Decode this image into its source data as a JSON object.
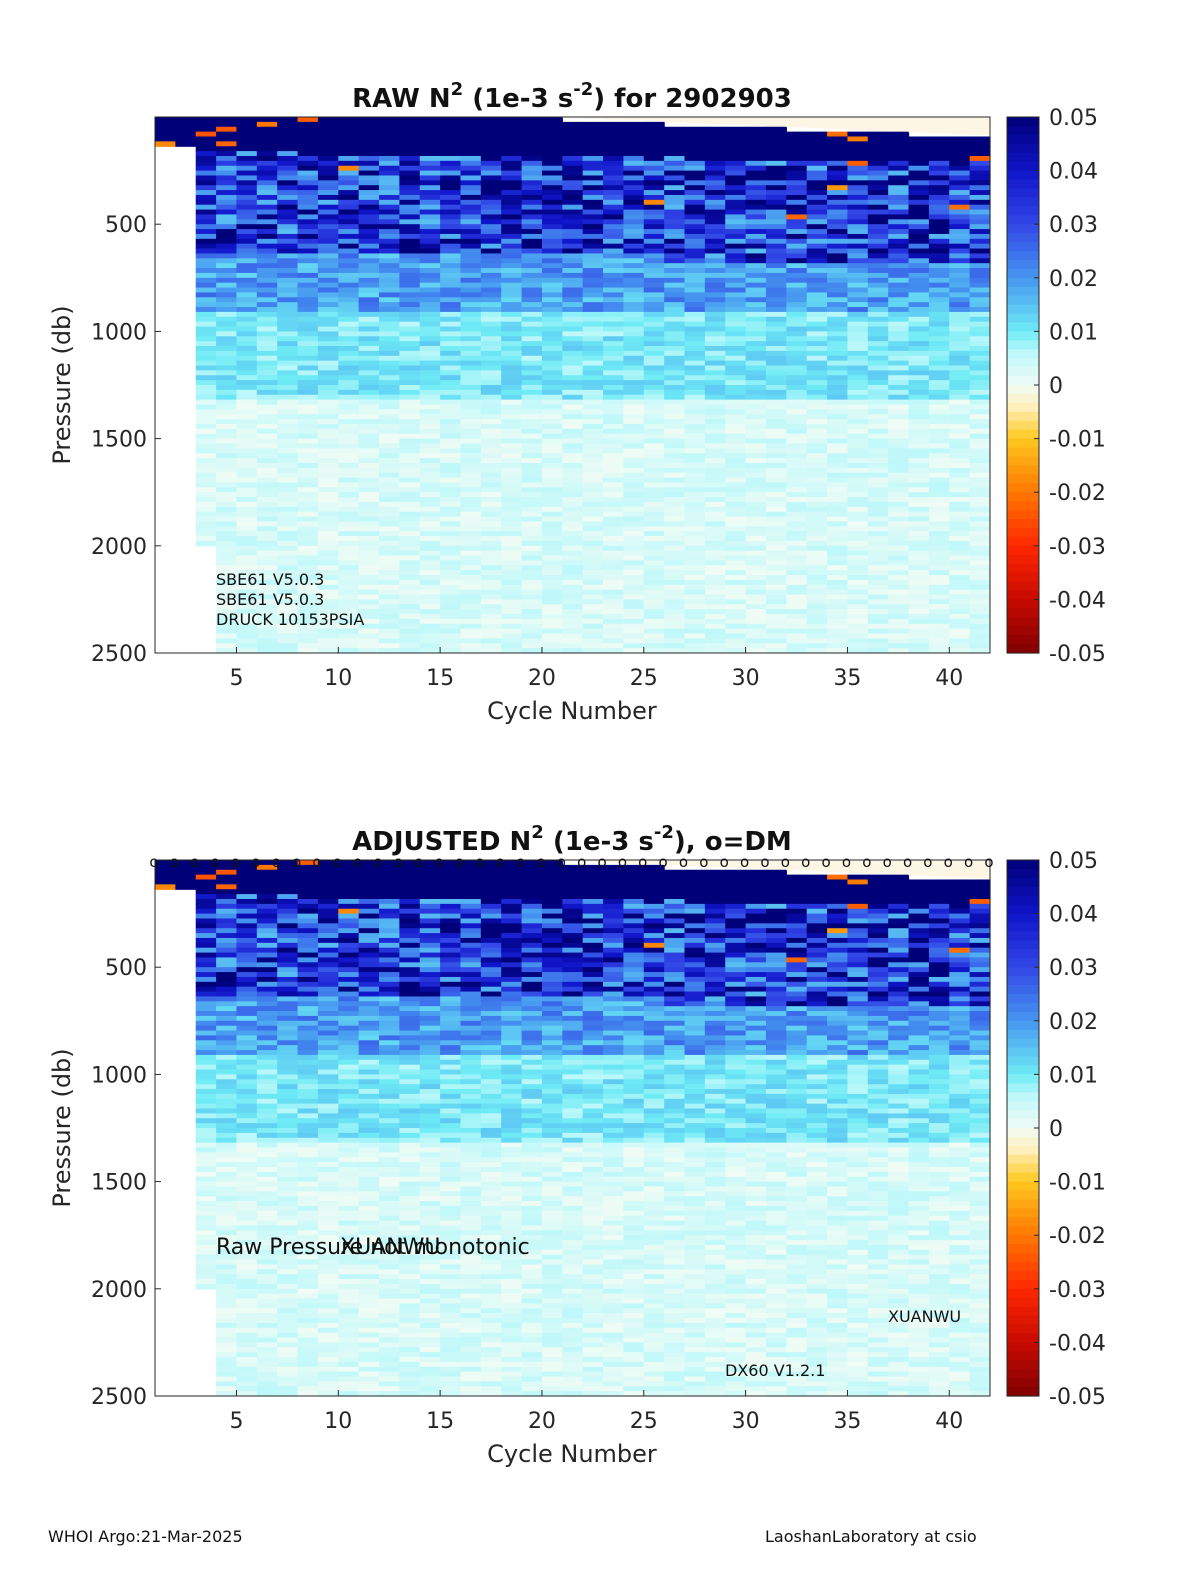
{
  "chart_data": [
    {
      "type": "heatmap",
      "title_main": "RAW N",
      "title_sup": "2",
      "title_unit_pre": " (1e-3 s",
      "title_unit_sup": "-2",
      "title_post": ") for 2902903",
      "xlabel": "Cycle Number",
      "ylabel": "Pressure (db)",
      "xlim": [
        1,
        42
      ],
      "ylim": [
        0,
        2500
      ],
      "y_reversed": true,
      "xticks": [
        "5",
        "10",
        "15",
        "20",
        "25",
        "30",
        "35",
        "40"
      ],
      "xtick_values": [
        5,
        10,
        15,
        20,
        25,
        30,
        35,
        40
      ],
      "yticks": [
        "500",
        "1000",
        "1500",
        "2000",
        "2500"
      ],
      "ytick_values": [
        500,
        1000,
        1500,
        2000,
        2500
      ],
      "colorbar": {
        "ticks": [
          "0.05",
          "0.04",
          "0.03",
          "0.02",
          "0.01",
          "0",
          "-0.01",
          "-0.02",
          "-0.03",
          "-0.04",
          "-0.05"
        ],
        "range": [
          -0.05,
          0.05
        ]
      },
      "annotations": [
        "SBE61 V5.0.3",
        "SBE61 V5.0.3",
        "DRUCK 10153PSIA"
      ],
      "dm_markers": false
    },
    {
      "type": "heatmap",
      "title_main": "ADJUSTED N",
      "title_sup": "2",
      "title_unit_pre": " (1e-3 s",
      "title_unit_sup": "-2",
      "title_post": "), o=DM",
      "xlabel": "Cycle Number",
      "ylabel": "Pressure (db)",
      "xlim": [
        1,
        42
      ],
      "ylim": [
        0,
        2500
      ],
      "y_reversed": true,
      "xticks": [
        "5",
        "10",
        "15",
        "20",
        "25",
        "30",
        "35",
        "40"
      ],
      "xtick_values": [
        5,
        10,
        15,
        20,
        25,
        30,
        35,
        40
      ],
      "yticks": [
        "500",
        "1000",
        "1500",
        "2000",
        "2500"
      ],
      "ytick_values": [
        500,
        1000,
        1500,
        2000,
        2500
      ],
      "colorbar": {
        "ticks": [
          "0.05",
          "0.04",
          "0.03",
          "0.02",
          "0.01",
          "0",
          "-0.01",
          "-0.02",
          "-0.03",
          "-0.04",
          "-0.05"
        ],
        "range": [
          -0.05,
          0.05
        ]
      },
      "annotations": [
        "Raw Pressure not monotonic",
        "XUANWU",
        "XUANWU",
        "DX60 V1.2.1"
      ],
      "dm_markers": true,
      "dm_marker_symbol": "o"
    }
  ],
  "footer": {
    "left": "WHOI Argo:21-Mar-2025",
    "right": "LaoshanLaboratory at csio"
  }
}
